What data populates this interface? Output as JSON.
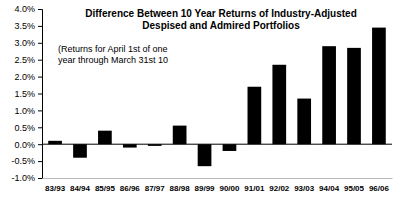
{
  "chart_data": {
    "type": "bar",
    "title": [
      "Difference Between 10 Year Returns of Industry-Adjusted",
      "Despised and Admired Portfolios"
    ],
    "annotations": [
      "(Returns for April 1st of one",
      "year through March 31st 10"
    ],
    "categories": [
      "83/93",
      "84/94",
      "85/95",
      "86/96",
      "87/97",
      "88/98",
      "89/99",
      "90/00",
      "91/01",
      "92/02",
      "93/03",
      "94/04",
      "95/05",
      "96/06"
    ],
    "values": [
      0.1,
      -0.4,
      0.4,
      -0.1,
      -0.05,
      0.55,
      -0.65,
      -0.2,
      1.7,
      2.35,
      1.35,
      2.9,
      2.85,
      3.45
    ],
    "color": "#000000",
    "ylim": [
      -1.0,
      4.0
    ],
    "yticks": [
      {
        "value": -1.0,
        "label": "-1.0%"
      },
      {
        "value": -0.5,
        "label": "-0.5%"
      },
      {
        "value": 0,
        "label": "0.0%"
      },
      {
        "value": 0.5,
        "label": "0.5%"
      },
      {
        "value": 1.0,
        "label": "1.0%"
      },
      {
        "value": 1.5,
        "label": "1.5%"
      },
      {
        "value": 2.0,
        "label": "2.0%"
      },
      {
        "value": 2.5,
        "label": "2.5%"
      },
      {
        "value": 3.0,
        "label": "3.0%"
      },
      {
        "value": 3.5,
        "label": "3.5%"
      },
      {
        "value": 4.0,
        "label": "4.0%"
      }
    ],
    "grid": false
  }
}
